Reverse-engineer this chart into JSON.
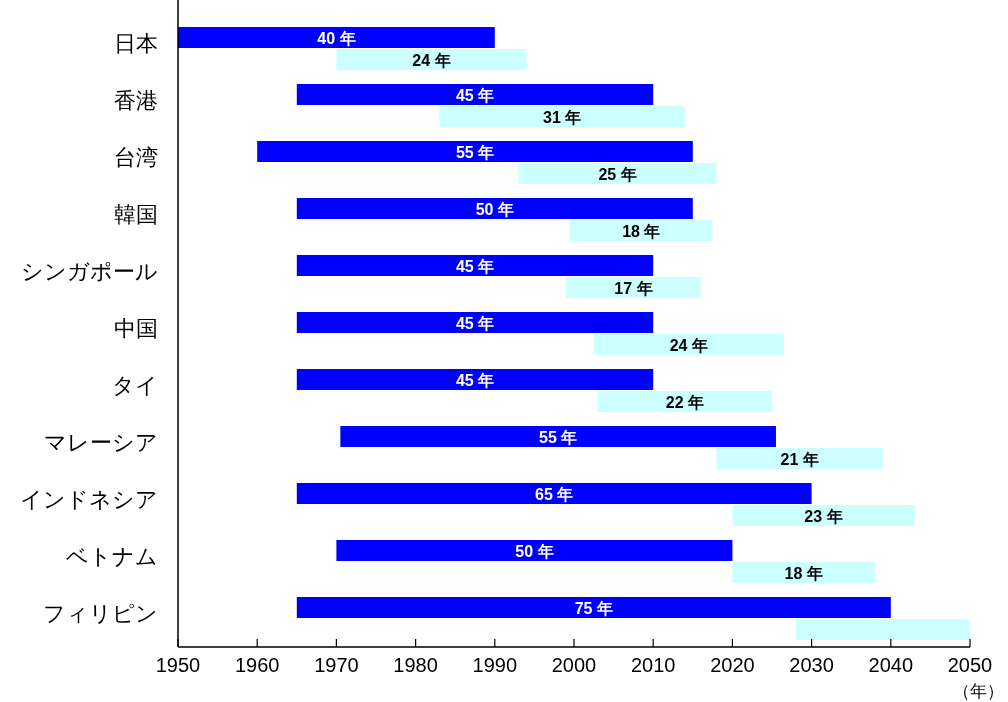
{
  "chart_data": {
    "type": "bar",
    "orientation": "horizontal",
    "xlabel": "（年）",
    "categories": [
      "日本",
      "香港",
      "台湾",
      "韓国",
      "シンガポール",
      "中国",
      "タイ",
      "マレーシア",
      "インドネシア",
      "ベトナム",
      "フィリピン"
    ],
    "series": [
      {
        "color": "#0000ff",
        "base": [
          1950,
          1965,
          1960,
          1965,
          1965,
          1965,
          1965,
          1970.5,
          1965,
          1970,
          1965
        ],
        "values": [
          40,
          45,
          55,
          50,
          45,
          45,
          45,
          55,
          65,
          50,
          75
        ],
        "value_labels": [
          "40 年",
          "45 年",
          "55 年",
          "50 年",
          "45 年",
          "45 年",
          "45 年",
          "55 年",
          "65 年",
          "50 年",
          "75 年"
        ]
      },
      {
        "color": "#ccffff",
        "base": [
          1970,
          1983,
          1993,
          1999.5,
          1999,
          2002.5,
          2003,
          2018,
          2020,
          2020,
          2028
        ],
        "values": [
          24,
          31,
          25,
          18,
          17,
          24,
          22,
          21,
          23,
          18,
          22
        ],
        "value_labels": [
          "24 年",
          "31 年",
          "25 年",
          "18 年",
          "17 年",
          "24 年",
          "22 年",
          "21 年",
          "23 年",
          "18 年",
          null
        ]
      }
    ],
    "xlim": [
      1950,
      2050
    ],
    "xticks": [
      1950,
      1960,
      1970,
      1980,
      1990,
      2000,
      2010,
      2020,
      2030,
      2040,
      2050
    ],
    "grid": false
  }
}
